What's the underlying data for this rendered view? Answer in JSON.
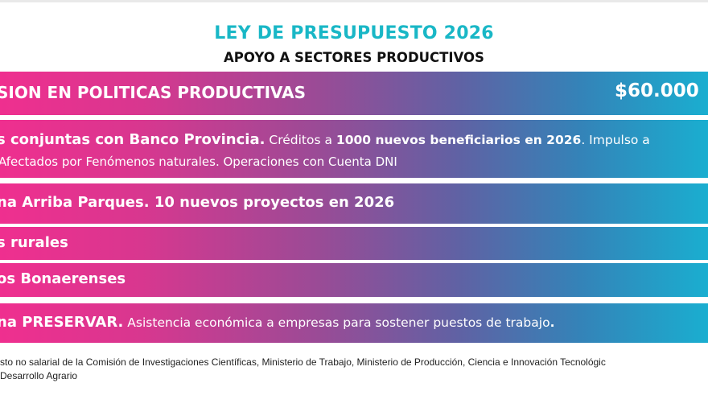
{
  "colors": {
    "title": "#19b7c6",
    "gradient_start": "#ef2f8f",
    "gradient_end": "#1aaed0"
  },
  "header": {
    "title": "LEY DE PRESUPUESTO 2026",
    "subtitle": "APOYO A SECTORES PRODUCTIVOS"
  },
  "summary": {
    "label": "SION EN POLITICAS PRODUCTIVAS",
    "amount": "$60.000"
  },
  "rows": [
    {
      "name": "s conjuntas con Banco Provincia.",
      "desc_pre": " Créditos a ",
      "desc_bold": "1000 nuevos beneficiarios en 2026",
      "desc_post": ". Impulso a",
      "line2": " Afectados por Fenómenos naturales. Operaciones con Cuenta DNI"
    },
    {
      "name": "na Arriba Parques. 10 nuevos proyectos en 2026"
    },
    {
      "name": "s rurales"
    },
    {
      "name": "os Bonaerenses"
    },
    {
      "name": "na PRESERVAR.",
      "desc": " Asistencia económica a empresas para sostener puestos de trabajo",
      "desc_end": "."
    }
  ],
  "footnotes": {
    "line1": "sto no salarial de la Comisión de Investigaciones Científicas, Ministerio de Trabajo, Ministerio de Producción, Ciencia e Innovación Tecnológic",
    "line2": "Desarrollo Agrario"
  }
}
